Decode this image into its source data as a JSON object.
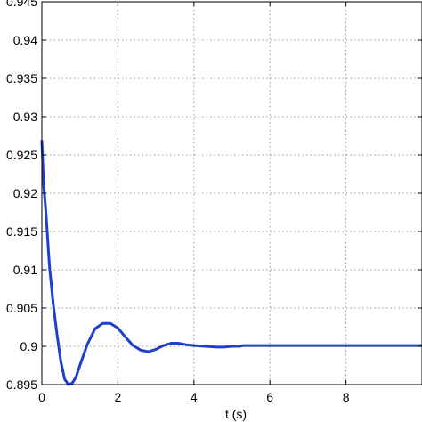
{
  "chart_data": {
    "type": "line",
    "title": "",
    "xlabel": "t (s)",
    "ylabel": "",
    "xlim": [
      0,
      10
    ],
    "ylim": [
      0.895,
      0.945
    ],
    "x_ticks": [
      0,
      2,
      4,
      6,
      8
    ],
    "x_tick_labels": [
      "0",
      "2",
      "4",
      "6",
      "8"
    ],
    "y_ticks": [
      0.895,
      0.9,
      0.905,
      0.91,
      0.915,
      0.92,
      0.925,
      0.93,
      0.935,
      0.94,
      0.945
    ],
    "y_tick_labels": [
      "0.895",
      "0.9",
      "0.905",
      "0.91",
      "0.915",
      "0.92",
      "0.925",
      "0.93",
      "0.935",
      "0.94",
      "0.945"
    ],
    "grid": true,
    "series": [
      {
        "color": "#1f3fcf",
        "x": [
          0.0,
          0.05,
          0.1,
          0.2,
          0.3,
          0.4,
          0.5,
          0.6,
          0.7,
          0.8,
          0.9,
          1.0,
          1.2,
          1.4,
          1.6,
          1.8,
          2.0,
          2.2,
          2.4,
          2.6,
          2.8,
          3.0,
          3.2,
          3.4,
          3.6,
          3.8,
          4.0,
          4.3,
          4.6,
          4.8,
          5.0,
          5.2,
          5.3,
          6.0,
          7.0,
          8.0,
          9.0,
          10.0
        ],
        "y": [
          0.9268,
          0.921,
          0.918,
          0.9105,
          0.9055,
          0.9015,
          0.898,
          0.8957,
          0.895,
          0.8952,
          0.896,
          0.8975,
          0.9003,
          0.9023,
          0.903,
          0.903,
          0.9024,
          0.9012,
          0.9001,
          0.8995,
          0.8993,
          0.8996,
          0.9001,
          0.9004,
          0.9004,
          0.9002,
          0.9001,
          0.9,
          0.8999,
          0.8999,
          0.9,
          0.9,
          0.9001,
          0.9001,
          0.9001,
          0.9001,
          0.9001,
          0.9001
        ]
      }
    ]
  }
}
